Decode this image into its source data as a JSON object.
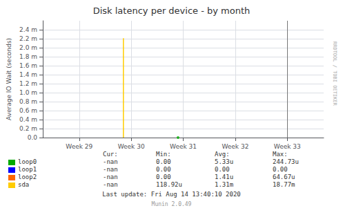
{
  "chart_data": {
    "type": "line",
    "title": "Disk latency per device - by month",
    "ylabel": "Average IO Wait (seconds)",
    "xlim": [
      28.3,
      33.7
    ],
    "ylim": [
      0.0,
      2.6
    ],
    "xticks": [
      {
        "value": 29,
        "label": "Week 29"
      },
      {
        "value": 30,
        "label": "Week 30"
      },
      {
        "value": 31,
        "label": "Week 31"
      },
      {
        "value": 32,
        "label": "Week 32"
      },
      {
        "value": 33,
        "label": "Week 33"
      }
    ],
    "yticks": [
      {
        "value": 0.0,
        "label": "0.0"
      },
      {
        "value": 0.2,
        "label": "0.2 m"
      },
      {
        "value": 0.4,
        "label": "0.4 m"
      },
      {
        "value": 0.6,
        "label": "0.6 m"
      },
      {
        "value": 0.8,
        "label": "0.8 m"
      },
      {
        "value": 1.0,
        "label": "1.0 m"
      },
      {
        "value": 1.2,
        "label": "1.2 m"
      },
      {
        "value": 1.4,
        "label": "1.4 m"
      },
      {
        "value": 1.6,
        "label": "1.6 m"
      },
      {
        "value": 1.8,
        "label": "1.8 m"
      },
      {
        "value": 2.0,
        "label": "2.0 m"
      },
      {
        "value": 2.2,
        "label": "2.2 m"
      },
      {
        "value": 2.4,
        "label": "2.4 m"
      }
    ],
    "grid": true,
    "vline": 33.0,
    "series": [
      {
        "name": "loop0",
        "color": "#00aa00",
        "type": "scatter",
        "x": [
          30.9
        ],
        "values": [
          0.001
        ],
        "stats": [
          "-nan",
          "0.00",
          "5.33u",
          "244.73u"
        ]
      },
      {
        "name": "loop1",
        "color": "#0000ff",
        "type": "line",
        "x": [],
        "values": [],
        "stats": [
          "-nan",
          "0.00",
          "0.00",
          "0.00"
        ]
      },
      {
        "name": "loop2",
        "color": "#ff6600",
        "type": "line",
        "x": [],
        "values": [],
        "stats": [
          "-nan",
          "0.00",
          "1.41u",
          "64.67u"
        ]
      },
      {
        "name": "sda",
        "color": "#ffcc00",
        "type": "line",
        "x": [
          29.85,
          29.85
        ],
        "values": [
          0,
          2.21
        ],
        "stats": [
          "-nan",
          "118.92u",
          "1.31m",
          "18.77m"
        ]
      }
    ],
    "stats_headers": [
      "Cur:",
      "Min:",
      "Avg:",
      "Max:"
    ],
    "annotations": [
      "Last update: Fri Aug 14 13:40:10 2020",
      "Munin 2.0.49",
      "RRDTOOL / TOBI OETIKER"
    ]
  }
}
